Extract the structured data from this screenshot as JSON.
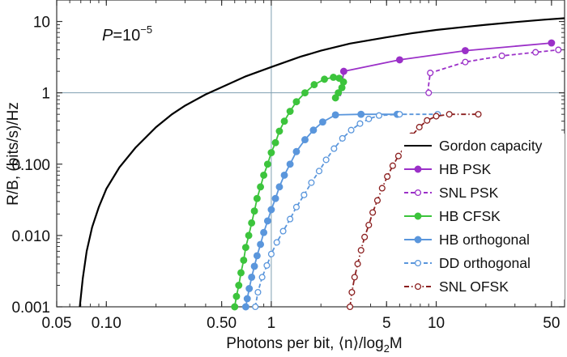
{
  "chart_data": {
    "type": "line",
    "title": "",
    "annotation": "P=10−5",
    "annotation_parts": {
      "p": "P",
      "eq": "=10",
      "exp": "−5"
    },
    "xlabel": "Photons per bit, ⟨n⟩/log₂M",
    "xlabel_parts": {
      "main": "Photons per bit, ⟨n⟩/log",
      "sub": "2",
      "tail": "M"
    },
    "ylabel": "R/B, (bits/s)/Hz",
    "x_scale": "log",
    "y_scale": "log",
    "xlim": [
      0.05,
      60
    ],
    "ylim": [
      0.001,
      20
    ],
    "x_ticks": [
      {
        "value": 0.05,
        "label": "0.05"
      },
      {
        "value": 0.1,
        "label": "0.10"
      },
      {
        "value": 0.5,
        "label": "0.50"
      },
      {
        "value": 1,
        "label": "1"
      },
      {
        "value": 5,
        "label": "5"
      },
      {
        "value": 10,
        "label": "10"
      },
      {
        "value": 50,
        "label": "50"
      }
    ],
    "y_ticks": [
      {
        "value": 10,
        "label": "10"
      },
      {
        "value": 1,
        "label": "1"
      },
      {
        "value": 0.1,
        "label": "0.100"
      },
      {
        "value": 0.01,
        "label": "0.010"
      },
      {
        "value": 0.001,
        "label": "0.001"
      }
    ],
    "reference_lines": {
      "x": 1,
      "y": 1,
      "color": "#7f9fb0"
    },
    "legend_position": "right",
    "series": [
      {
        "name": "Gordon capacity",
        "color": "#000000",
        "style": "solid",
        "marker": "none",
        "points": [
          [
            0.069,
            0.001
          ],
          [
            0.072,
            0.0025
          ],
          [
            0.076,
            0.006
          ],
          [
            0.082,
            0.013
          ],
          [
            0.09,
            0.025
          ],
          [
            0.1,
            0.045
          ],
          [
            0.12,
            0.09
          ],
          [
            0.15,
            0.17
          ],
          [
            0.2,
            0.33
          ],
          [
            0.25,
            0.5
          ],
          [
            0.3,
            0.66
          ],
          [
            0.4,
            0.95
          ],
          [
            0.5,
            1.2
          ],
          [
            0.7,
            1.7
          ],
          [
            1,
            2.3
          ],
          [
            1.5,
            3.2
          ],
          [
            2,
            3.9
          ],
          [
            3,
            4.9
          ],
          [
            5,
            6.0
          ],
          [
            7,
            6.8
          ],
          [
            10,
            7.6
          ],
          [
            15,
            8.4
          ],
          [
            20,
            9.0
          ],
          [
            30,
            9.8
          ],
          [
            45,
            10.6
          ],
          [
            60,
            11.1
          ]
        ]
      },
      {
        "name": "HB PSK",
        "color": "#9b30c8",
        "style": "solid",
        "marker": "filled",
        "points": [
          [
            2.62,
            0.9
          ],
          [
            2.64,
            1.0
          ],
          [
            2.68,
            1.3
          ],
          [
            2.75,
            2.0
          ],
          [
            6,
            2.9
          ],
          [
            15,
            3.9
          ],
          [
            50,
            5.0
          ]
        ],
        "marker_points": [
          [
            2.75,
            2.0
          ],
          [
            6,
            2.9
          ],
          [
            15,
            3.9
          ],
          [
            50,
            5.0
          ]
        ]
      },
      {
        "name": "SNL PSK",
        "color": "#9b30c8",
        "style": "dashed",
        "marker": "open",
        "points": [
          [
            8.9,
            1.0
          ],
          [
            9.0,
            1.3
          ],
          [
            9.2,
            1.9
          ],
          [
            15,
            2.7
          ],
          [
            25,
            3.3
          ],
          [
            40,
            3.7
          ],
          [
            55,
            4.0
          ]
        ],
        "marker_points": [
          [
            9.0,
            1.0
          ],
          [
            9.2,
            1.9
          ],
          [
            15,
            2.7
          ],
          [
            25,
            3.3
          ],
          [
            40,
            3.7
          ],
          [
            55,
            4.0
          ]
        ]
      },
      {
        "name": "HB CFSK",
        "color": "#3cc43c",
        "style": "solid",
        "marker": "filled",
        "points": [
          [
            0.6,
            0.001
          ],
          [
            0.615,
            0.0014
          ],
          [
            0.635,
            0.002
          ],
          [
            0.655,
            0.003
          ],
          [
            0.68,
            0.0045
          ],
          [
            0.7,
            0.0068
          ],
          [
            0.73,
            0.01
          ],
          [
            0.76,
            0.015
          ],
          [
            0.79,
            0.022
          ],
          [
            0.82,
            0.033
          ],
          [
            0.86,
            0.048
          ],
          [
            0.9,
            0.07
          ],
          [
            0.95,
            0.1
          ],
          [
            1.0,
            0.145
          ],
          [
            1.06,
            0.2
          ],
          [
            1.12,
            0.29
          ],
          [
            1.2,
            0.4
          ],
          [
            1.3,
            0.55
          ],
          [
            1.42,
            0.75
          ],
          [
            1.6,
            1.0
          ],
          [
            1.82,
            1.3
          ],
          [
            2.1,
            1.55
          ],
          [
            2.38,
            1.65
          ],
          [
            2.58,
            1.6
          ],
          [
            2.74,
            1.42
          ],
          [
            2.68,
            1.18
          ],
          [
            2.55,
            1.0
          ],
          [
            2.45,
            0.85
          ]
        ]
      },
      {
        "name": "HB orthogonal",
        "color": "#5a96dc",
        "style": "solid",
        "marker": "filled",
        "points": [
          [
            0.7,
            0.001
          ],
          [
            0.715,
            0.0013
          ],
          [
            0.735,
            0.0018
          ],
          [
            0.76,
            0.0026
          ],
          [
            0.79,
            0.0037
          ],
          [
            0.82,
            0.0052
          ],
          [
            0.86,
            0.0075
          ],
          [
            0.9,
            0.011
          ],
          [
            0.95,
            0.016
          ],
          [
            1.0,
            0.023
          ],
          [
            1.06,
            0.033
          ],
          [
            1.12,
            0.048
          ],
          [
            1.2,
            0.07
          ],
          [
            1.3,
            0.1
          ],
          [
            1.42,
            0.15
          ],
          [
            1.6,
            0.22
          ],
          [
            1.8,
            0.3
          ],
          [
            2.05,
            0.39
          ],
          [
            2.45,
            0.49
          ],
          [
            3.5,
            0.5
          ],
          [
            5.8,
            0.5
          ]
        ]
      },
      {
        "name": "DD orthogonal",
        "color": "#5a96dc",
        "style": "dashed",
        "marker": "open",
        "points": [
          [
            0.8,
            0.001
          ],
          [
            0.83,
            0.0016
          ],
          [
            0.88,
            0.0026
          ],
          [
            0.94,
            0.0038
          ],
          [
            1.0,
            0.0055
          ],
          [
            1.08,
            0.008
          ],
          [
            1.18,
            0.0115
          ],
          [
            1.3,
            0.017
          ],
          [
            1.42,
            0.025
          ],
          [
            1.58,
            0.037
          ],
          [
            1.75,
            0.055
          ],
          [
            1.95,
            0.08
          ],
          [
            2.15,
            0.115
          ],
          [
            2.4,
            0.165
          ],
          [
            2.7,
            0.23
          ],
          [
            3.05,
            0.3
          ],
          [
            3.45,
            0.37
          ],
          [
            3.9,
            0.43
          ],
          [
            4.5,
            0.48
          ],
          [
            6.0,
            0.5
          ],
          [
            10.2,
            0.5
          ]
        ]
      },
      {
        "name": "SNL OFSK",
        "color": "#8b1f1f",
        "style": "dashdot",
        "marker": "open",
        "points": [
          [
            3.0,
            0.001
          ],
          [
            3.08,
            0.0016
          ],
          [
            3.2,
            0.0026
          ],
          [
            3.34,
            0.004
          ],
          [
            3.5,
            0.0062
          ],
          [
            3.68,
            0.0095
          ],
          [
            3.9,
            0.014
          ],
          [
            4.12,
            0.021
          ],
          [
            4.4,
            0.031
          ],
          [
            4.7,
            0.046
          ],
          [
            5.05,
            0.067
          ],
          [
            5.45,
            0.095
          ],
          [
            5.9,
            0.13
          ],
          [
            6.5,
            0.18
          ],
          [
            7.1,
            0.25
          ],
          [
            7.9,
            0.33
          ],
          [
            8.8,
            0.41
          ],
          [
            10,
            0.47
          ],
          [
            12,
            0.5
          ],
          [
            18,
            0.5
          ]
        ]
      }
    ]
  }
}
